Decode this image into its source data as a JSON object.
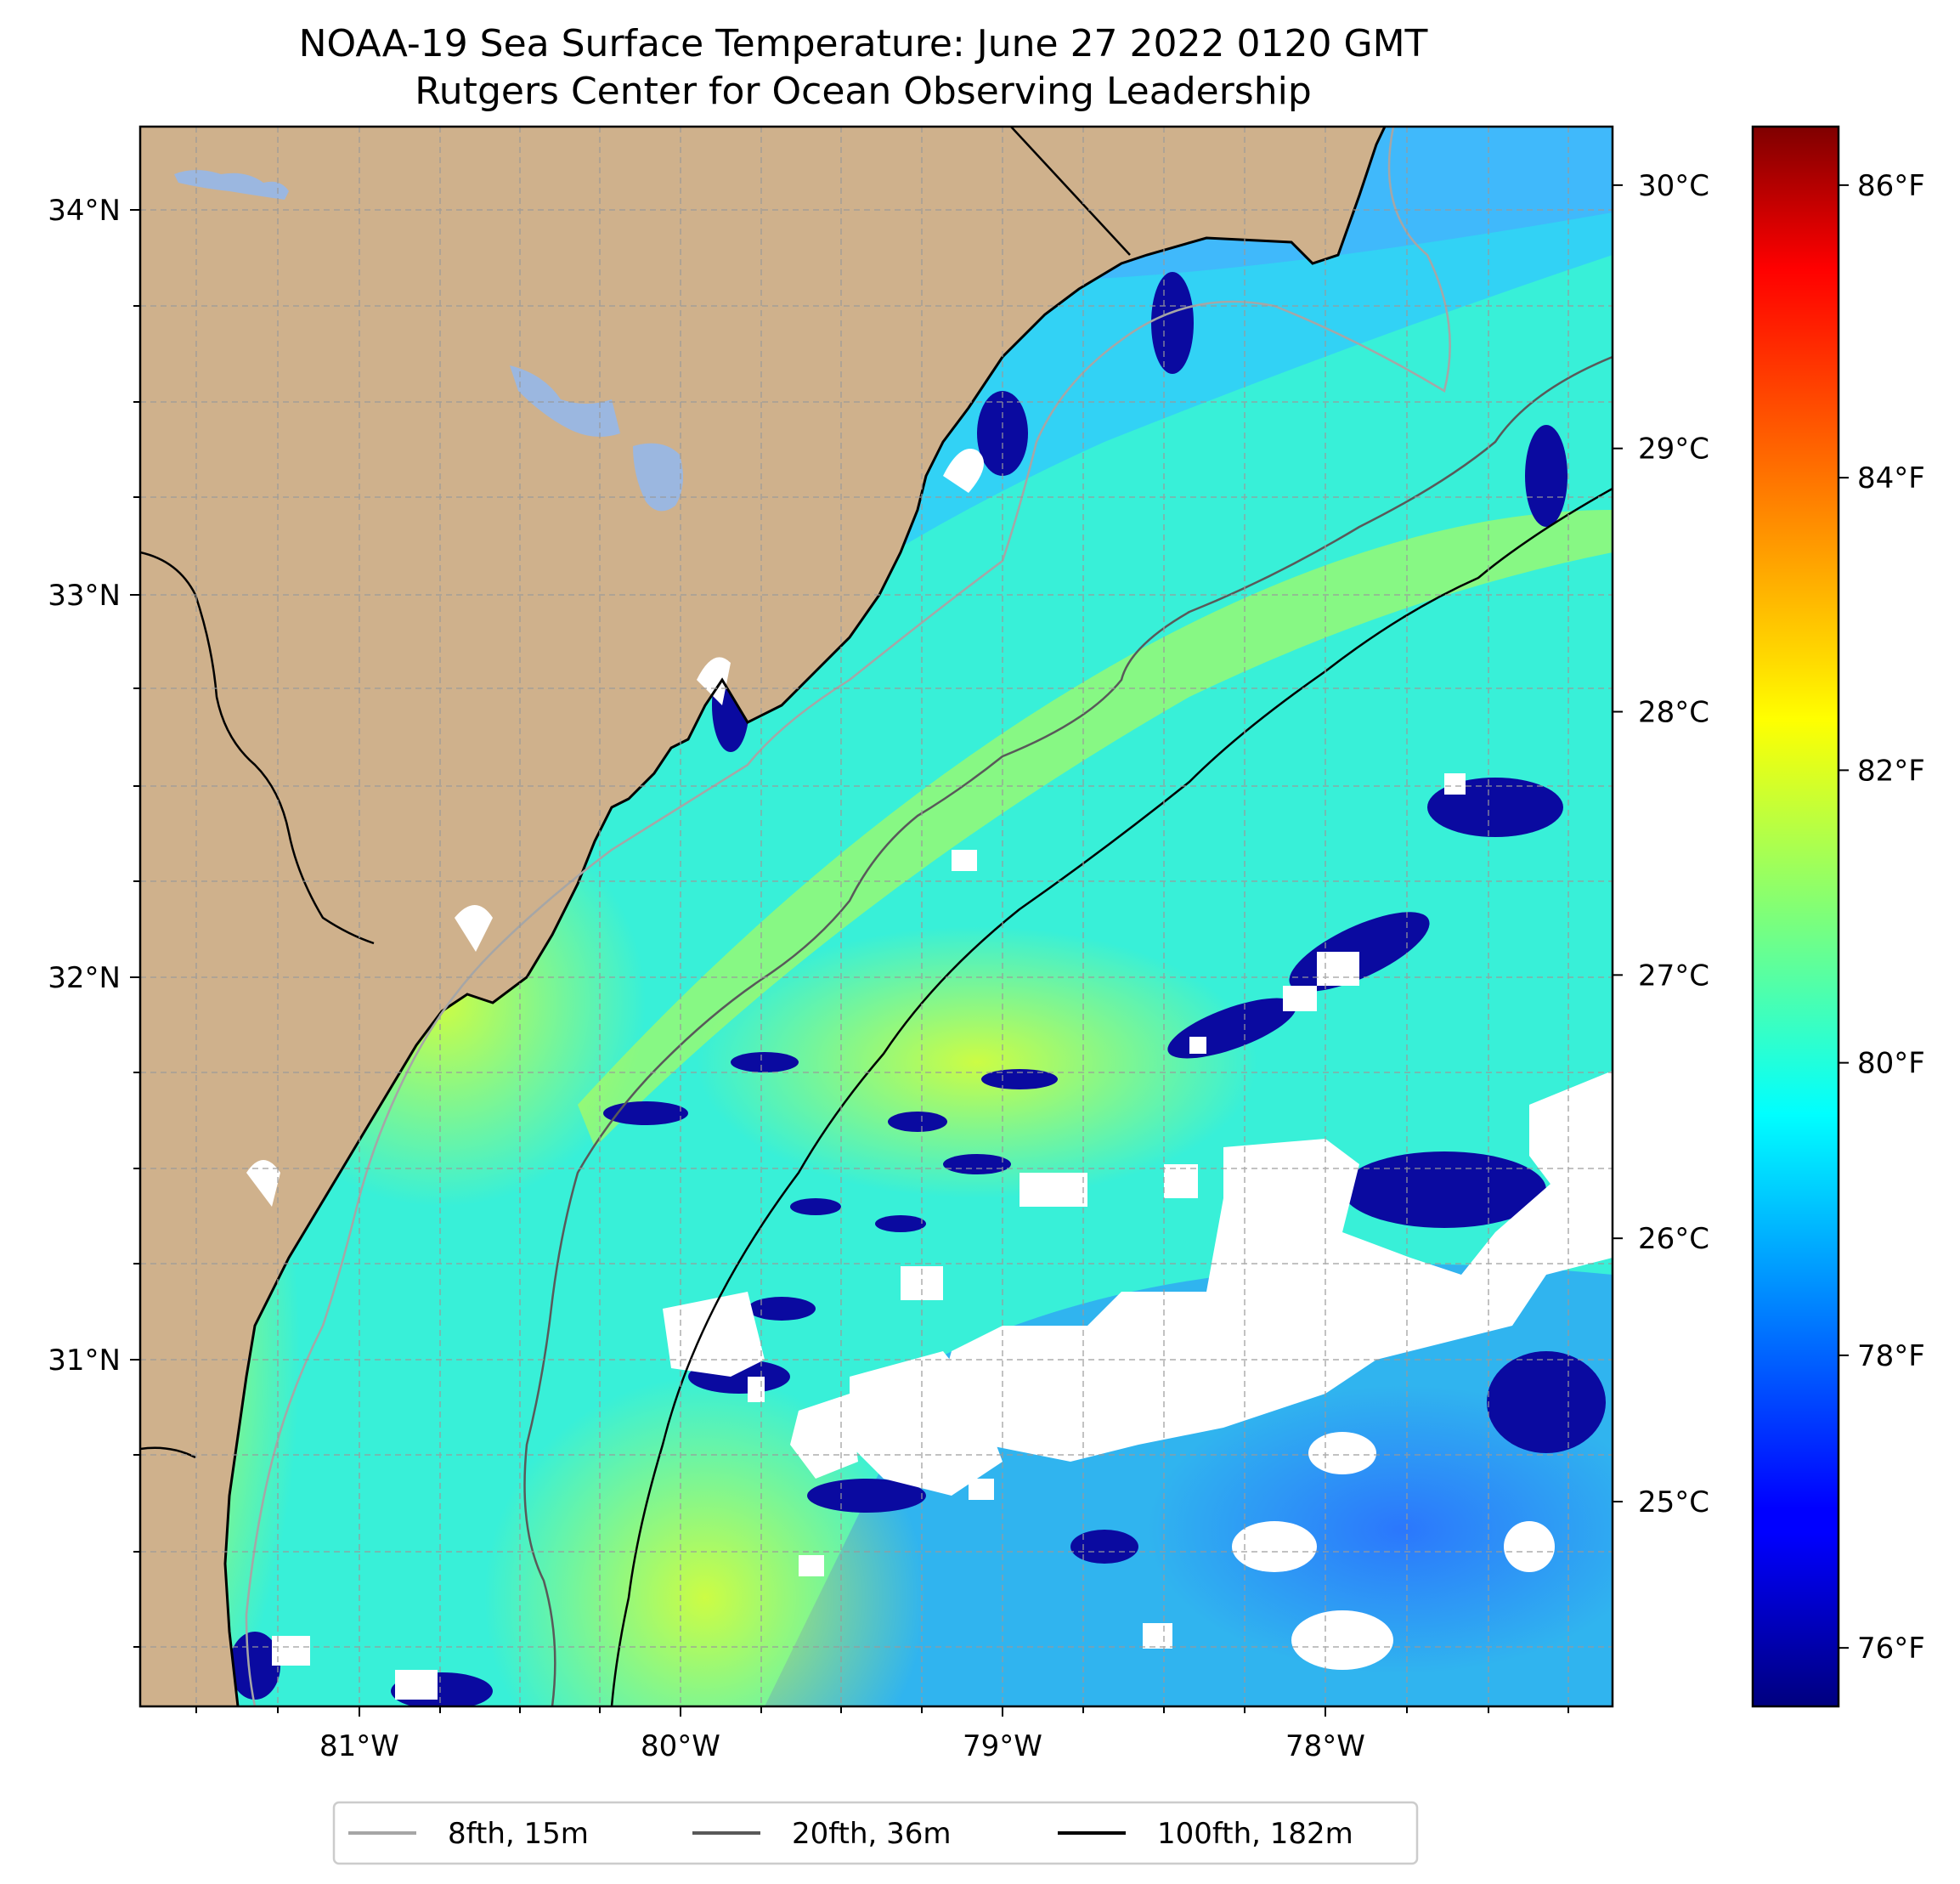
{
  "title": {
    "line1": "NOAA-19 Sea Surface Temperature: June 27 2022 0120 GMT",
    "line2": "Rutgers Center for Ocean Observing Leadership"
  },
  "map": {
    "lat_ticks": [
      "34°N",
      "33°N",
      "32°N",
      "31°N"
    ],
    "lon_ticks": [
      "81°W",
      "80°W",
      "79°W",
      "78°W"
    ],
    "lat_range": [
      30.12,
      34.28
    ],
    "lon_range": [
      -81.7,
      -77.12
    ],
    "colors": {
      "land": "#cfb18c",
      "lake": "#9bb7e0",
      "cloud": "#ffffff",
      "coast": "#000000",
      "grid": "#9a9a9a",
      "isobath_8fth": "#a6a6a6",
      "isobath_20fth": "#595959",
      "isobath_100fth": "#000000"
    }
  },
  "colorbar": {
    "celsius_ticks": [
      "30°C",
      "29°C",
      "28°C",
      "27°C",
      "26°C",
      "25°C"
    ],
    "fahrenheit_ticks": [
      "86°F",
      "84°F",
      "82°F",
      "80°F",
      "78°F",
      "76°F"
    ],
    "celsius_values": [
      30,
      29,
      28,
      27,
      26,
      25
    ],
    "fahrenheit_values": [
      86,
      84,
      82,
      80,
      78,
      76
    ],
    "range_f": [
      75.6,
      86.4
    ],
    "colormap": "jet"
  },
  "legend": {
    "items": [
      {
        "label": "8fth, 15m",
        "color": "#a6a6a6"
      },
      {
        "label": "20fth, 36m",
        "color": "#595959"
      },
      {
        "label": "100fth, 182m",
        "color": "#000000"
      }
    ]
  }
}
